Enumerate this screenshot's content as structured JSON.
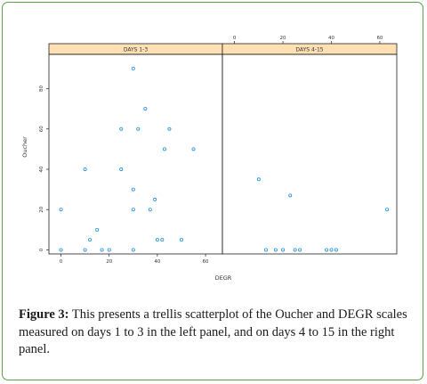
{
  "caption": {
    "label": "Figure 3:",
    "text": " This presents a trellis scatterplot of the Oucher and DEGR scales measured on days 1 to 3 in the left panel, and on days 4 to 15 in the right panel."
  },
  "chart_data": {
    "type": "scatter",
    "layout": "trellis",
    "xlabel": "DEGR",
    "ylabel": "Oucher",
    "xlim": [
      -5,
      67
    ],
    "ylim": [
      -2,
      97
    ],
    "x_ticks": [
      0,
      20,
      40,
      60
    ],
    "y_ticks": [
      0,
      20,
      40,
      60,
      80
    ],
    "x_tick_labels": [
      "0",
      "20",
      "40",
      "60"
    ],
    "y_tick_labels": [
      "0",
      "20",
      "40",
      "60",
      "80"
    ],
    "grid": false,
    "point_color": "#1f8fd6",
    "strip_color": "#ffe0b3",
    "panels": [
      {
        "name": "DAYS 1-3",
        "x": [
          0,
          0,
          10,
          10,
          12,
          15,
          17,
          20,
          25,
          25,
          30,
          30,
          30,
          30,
          32,
          35,
          37,
          39,
          40,
          42,
          43,
          45,
          50,
          55
        ],
        "y": [
          20,
          0,
          0,
          40,
          5,
          10,
          0,
          0,
          60,
          40,
          0,
          20,
          30,
          90,
          60,
          70,
          20,
          25,
          5,
          5,
          50,
          60,
          5,
          50
        ]
      },
      {
        "name": "DAYS 4-15",
        "x": [
          10,
          13,
          17,
          20,
          23,
          25,
          27,
          38,
          40,
          42,
          63
        ],
        "y": [
          35,
          0,
          0,
          0,
          27,
          0,
          0,
          0,
          0,
          0,
          20
        ]
      }
    ]
  }
}
